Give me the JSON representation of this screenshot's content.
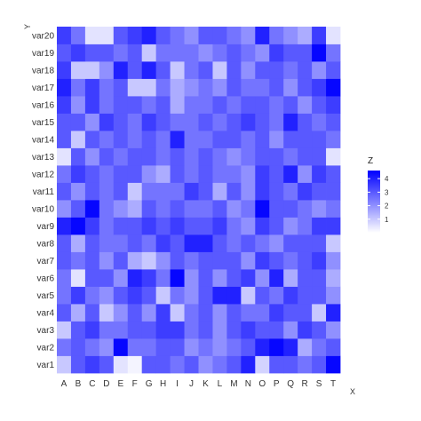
{
  "chart_data": {
    "type": "heatmap",
    "x": [
      "A",
      "B",
      "C",
      "D",
      "E",
      "F",
      "G",
      "H",
      "I",
      "J",
      "K",
      "L",
      "M",
      "N",
      "O",
      "P",
      "Q",
      "R",
      "S",
      "T"
    ],
    "y": [
      "var1",
      "var2",
      "var3",
      "var4",
      "var5",
      "var6",
      "var7",
      "var8",
      "var9",
      "var10",
      "var11",
      "var12",
      "var13",
      "var14",
      "var15",
      "var16",
      "var17",
      "var18",
      "var19",
      "var20"
    ],
    "xlabel": "X",
    "ylabel": "Y",
    "legend": {
      "title": "Z",
      "ticks": [
        1,
        2,
        3,
        4
      ],
      "placement": "right"
    },
    "z_range": [
      0,
      4.6
    ],
    "colors": {
      "low": "#ffffff",
      "high": "#0000ff"
    },
    "z": [
      [
        1.0,
        3.0,
        3.5,
        3.0,
        0.5,
        0.2,
        3.0,
        3.0,
        2.5,
        3.0,
        2.0,
        2.5,
        3.0,
        4.0,
        0.8,
        3.0,
        3.0,
        2.5,
        3.0,
        4.5
      ],
      [
        2.5,
        3.0,
        2.5,
        2.0,
        4.5,
        2.5,
        2.5,
        3.0,
        3.0,
        2.0,
        2.5,
        2.0,
        2.5,
        3.0,
        4.0,
        4.5,
        4.0,
        1.5,
        2.5,
        3.0
      ],
      [
        1.0,
        3.0,
        3.5,
        2.5,
        2.5,
        3.0,
        3.0,
        3.5,
        3.5,
        2.5,
        3.0,
        2.0,
        3.0,
        3.5,
        3.0,
        3.0,
        2.0,
        3.5,
        3.0,
        2.0
      ],
      [
        3.0,
        1.5,
        3.0,
        1.0,
        2.0,
        3.0,
        2.0,
        3.5,
        1.0,
        2.5,
        3.0,
        2.0,
        3.0,
        2.5,
        2.5,
        3.5,
        3.0,
        3.0,
        1.0,
        4.0
      ],
      [
        2.5,
        3.5,
        2.5,
        2.0,
        3.0,
        3.5,
        3.0,
        1.0,
        2.5,
        2.0,
        3.0,
        4.0,
        4.0,
        1.0,
        3.0,
        2.5,
        3.5,
        3.0,
        3.0,
        2.0
      ],
      [
        2.5,
        0.5,
        3.0,
        3.0,
        2.0,
        4.0,
        3.5,
        2.5,
        4.5,
        2.0,
        3.0,
        2.0,
        3.0,
        3.5,
        2.0,
        4.0,
        1.5,
        3.0,
        3.0,
        1.5
      ],
      [
        3.0,
        2.5,
        3.0,
        2.0,
        3.0,
        1.5,
        1.0,
        2.0,
        3.0,
        2.5,
        3.0,
        3.0,
        3.0,
        2.0,
        3.5,
        3.0,
        2.5,
        3.0,
        3.5,
        2.0
      ],
      [
        3.0,
        1.5,
        3.0,
        2.5,
        2.5,
        3.0,
        2.5,
        3.5,
        3.0,
        4.0,
        4.0,
        3.0,
        2.5,
        3.0,
        2.5,
        2.0,
        3.0,
        3.0,
        3.0,
        1.0
      ],
      [
        4.0,
        4.5,
        3.5,
        2.5,
        3.0,
        3.0,
        3.5,
        3.0,
        3.5,
        3.0,
        3.0,
        3.5,
        2.5,
        2.0,
        3.5,
        3.0,
        2.0,
        2.5,
        3.5,
        3.5
      ],
      [
        2.0,
        3.0,
        4.5,
        2.5,
        2.0,
        1.5,
        3.0,
        2.5,
        3.0,
        2.5,
        2.5,
        3.0,
        2.0,
        2.5,
        4.5,
        3.0,
        3.0,
        2.5,
        2.0,
        2.5
      ],
      [
        3.0,
        2.0,
        3.0,
        2.5,
        3.0,
        1.0,
        2.5,
        2.5,
        2.5,
        3.5,
        3.0,
        1.5,
        3.0,
        2.0,
        3.5,
        3.0,
        2.5,
        3.5,
        3.0,
        3.0
      ],
      [
        2.5,
        3.5,
        3.0,
        2.5,
        3.0,
        3.0,
        2.0,
        1.5,
        3.0,
        2.5,
        3.0,
        2.5,
        2.5,
        2.0,
        3.5,
        3.0,
        4.0,
        2.0,
        3.5,
        3.0
      ],
      [
        0.5,
        3.0,
        2.0,
        3.0,
        2.5,
        3.0,
        3.0,
        2.5,
        3.0,
        2.5,
        3.0,
        2.5,
        2.0,
        2.5,
        3.0,
        3.0,
        2.5,
        3.0,
        3.0,
        0.5
      ],
      [
        3.0,
        1.0,
        3.0,
        2.5,
        3.0,
        2.5,
        3.0,
        2.5,
        4.0,
        2.5,
        2.5,
        3.0,
        3.0,
        2.5,
        3.0,
        2.0,
        3.0,
        3.0,
        3.0,
        2.5
      ],
      [
        3.0,
        3.0,
        2.0,
        3.5,
        3.0,
        2.5,
        3.5,
        3.0,
        2.5,
        2.5,
        3.0,
        2.5,
        3.0,
        3.5,
        3.0,
        2.5,
        4.0,
        3.0,
        2.5,
        3.0
      ],
      [
        3.5,
        2.0,
        3.5,
        2.5,
        3.0,
        3.0,
        2.5,
        3.0,
        1.5,
        2.5,
        2.5,
        3.0,
        2.5,
        3.0,
        3.0,
        2.5,
        3.0,
        2.0,
        3.0,
        3.5
      ],
      [
        4.0,
        2.5,
        3.5,
        2.5,
        3.0,
        1.0,
        1.0,
        2.5,
        1.5,
        2.0,
        2.5,
        2.0,
        3.0,
        2.5,
        2.5,
        3.0,
        2.0,
        3.0,
        3.5,
        4.5
      ],
      [
        3.5,
        1.0,
        1.0,
        2.0,
        4.0,
        3.0,
        4.0,
        3.0,
        1.0,
        2.5,
        3.0,
        1.0,
        3.0,
        2.0,
        3.0,
        3.0,
        2.5,
        3.0,
        2.0,
        3.0
      ],
      [
        3.0,
        3.5,
        3.0,
        3.0,
        2.5,
        3.0,
        1.0,
        2.5,
        2.5,
        2.5,
        2.0,
        2.5,
        3.0,
        2.5,
        2.0,
        3.5,
        3.0,
        3.0,
        4.5,
        2.5
      ],
      [
        3.5,
        2.5,
        0.5,
        0.5,
        3.0,
        3.5,
        4.0,
        3.0,
        2.5,
        2.0,
        3.0,
        3.0,
        2.5,
        2.0,
        4.0,
        2.5,
        2.0,
        1.5,
        3.5,
        0.5
      ]
    ]
  }
}
